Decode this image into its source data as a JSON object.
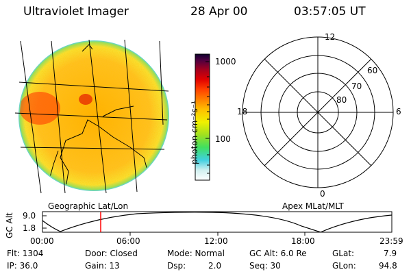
{
  "header": {
    "instrument": "Ultraviolet Imager",
    "date": "28 Apr 00",
    "time": "03:57:05 UT"
  },
  "colorbar": {
    "unit_label": "photon cm⁻²s⁻¹",
    "tick_1000": "1000",
    "tick_100": "100",
    "colors": [
      "#ffffff",
      "#b8f0f0",
      "#40d0e0",
      "#40e060",
      "#a0e020",
      "#f0f000",
      "#ffc000",
      "#ff8000",
      "#ff4000",
      "#e00000",
      "#a00020",
      "#600040",
      "#200060"
    ]
  },
  "polar_plot": {
    "label_12": "12",
    "label_18": "18",
    "label_6": "6",
    "label_0": "0",
    "label_60": "60",
    "label_70": "70",
    "label_80": "80"
  },
  "labels": {
    "left_map": "Geographic Lat/Lon",
    "right_map": "Apex MLat/MLT"
  },
  "altitude_plot": {
    "ylabel": "GC Alt",
    "y_top": "9.0",
    "y_bottom": "1.8",
    "x_ticks": [
      "00:00",
      "06:00",
      "12:00",
      "18:00",
      "23:59"
    ],
    "marker_color": "#ff0000"
  },
  "info": {
    "flt": "Flt: 1304",
    "ip": "IP: 36.0",
    "door": "Door: Closed",
    "gain": "Gain: 13",
    "mode": "Mode: Normal",
    "dsp_label": "Dsp:",
    "dsp_value": "2.0",
    "gc_alt": "GC Alt: 6.0 Re",
    "seq": "Seq: 30",
    "glat_label": "GLat:",
    "glat_value": "7.9",
    "glon_label": "GLon:",
    "glon_value": "94.8"
  }
}
